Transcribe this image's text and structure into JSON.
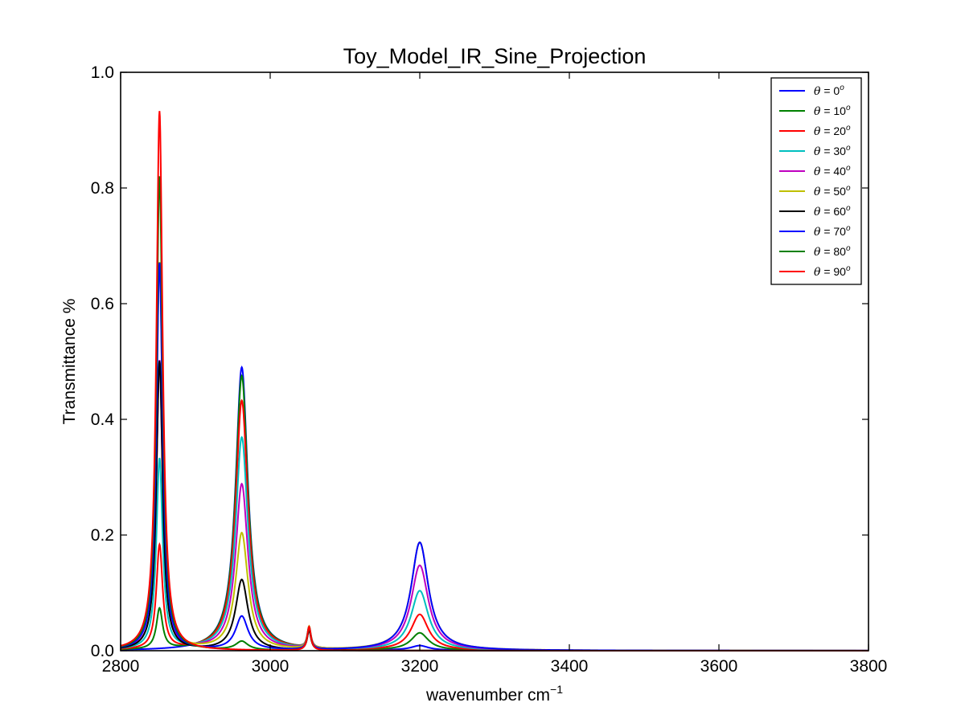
{
  "chart_data": {
    "type": "line",
    "title": "Toy_Model_IR_Sine_Projection",
    "xlabel": "wavenumber cm",
    "xlabel_superscript": "−1",
    "ylabel": "Transmittance %",
    "xlim": [
      2800,
      3800
    ],
    "ylim": [
      0.0,
      1.0
    ],
    "xticks": [
      2800,
      3000,
      3200,
      3400,
      3600,
      3800
    ],
    "xtick_labels": [
      "2800",
      "3000",
      "3200",
      "3400",
      "3600",
      "3800"
    ],
    "yticks": [
      0.0,
      0.2,
      0.4,
      0.6,
      0.8,
      1.0
    ],
    "ytick_labels": [
      "0.0",
      "0.2",
      "0.4",
      "0.6",
      "0.8",
      "1.0"
    ],
    "grid": false,
    "legend_position": "top-right",
    "legend_symbol": "θ",
    "legend_suffix": "o",
    "peak_centers": [
      2852,
      2962,
      3052,
      3200
    ],
    "peak_hwhm": [
      5,
      10,
      3,
      14
    ],
    "series": [
      {
        "name": "= 0",
        "color": "#0000ff",
        "peak_heights": [
          0.0,
          0.49,
          0.03,
          0.008
        ]
      },
      {
        "name": "= 10",
        "color": "#008000",
        "peak_heights": [
          0.07,
          0.475,
          0.032,
          0.03
        ]
      },
      {
        "name": "= 20",
        "color": "#ff0000",
        "peak_heights": [
          0.18,
          0.432,
          0.034,
          0.062
        ]
      },
      {
        "name": "= 30",
        "color": "#00bfbf",
        "peak_heights": [
          0.33,
          0.368,
          0.036,
          0.103
        ]
      },
      {
        "name": "= 40",
        "color": "#bf00bf",
        "peak_heights": [
          0.5,
          0.287,
          0.037,
          0.147
        ]
      },
      {
        "name": "= 50",
        "color": "#bfbf00",
        "peak_heights": [
          0.67,
          0.202,
          0.038,
          0.187
        ]
      },
      {
        "name": "= 60",
        "color": "#000000",
        "peak_heights": [
          0.5,
          0.122,
          0.034,
          0.0
        ]
      },
      {
        "name": "= 70",
        "color": "#0000ff",
        "peak_heights": [
          0.67,
          0.058,
          0.038,
          0.187
        ]
      },
      {
        "name": "= 80",
        "color": "#008000",
        "peak_heights": [
          0.82,
          0.015,
          0.04,
          0.0
        ]
      },
      {
        "name": "= 90",
        "color": "#ff0000",
        "peak_heights": [
          0.933,
          0.0,
          0.041,
          0.0
        ]
      }
    ]
  }
}
